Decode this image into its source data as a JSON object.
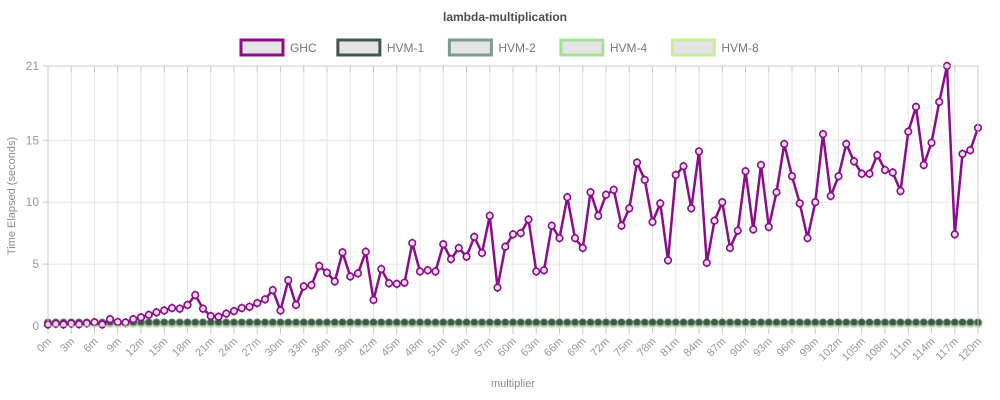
{
  "title": "lambda-multiplication",
  "axes": {
    "x_label": "multiplier",
    "y_label": "Time Elapsed (seconds)",
    "y_ticks": [
      0,
      5,
      10,
      15,
      21
    ],
    "x_tick_labels": [
      "0m",
      "3m",
      "6m",
      "9m",
      "12m",
      "15m",
      "18m",
      "21m",
      "24m",
      "27m",
      "30m",
      "33m",
      "36m",
      "39m",
      "42m",
      "45m",
      "48m",
      "51m",
      "54m",
      "57m",
      "60m",
      "63m",
      "66m",
      "69m",
      "72m",
      "75m",
      "78m",
      "81m",
      "84m",
      "87m",
      "90m",
      "93m",
      "96m",
      "99m",
      "102m",
      "105m",
      "108m",
      "111m",
      "114m",
      "117m",
      "120m"
    ]
  },
  "legend": [
    {
      "label": "GHC",
      "color": "#8b0d8b"
    },
    {
      "label": "HVM-1",
      "color": "#3d574a"
    },
    {
      "label": "HVM-2",
      "color": "#7d9d8a"
    },
    {
      "label": "HVM-4",
      "color": "#a3e295"
    },
    {
      "label": "HVM-8",
      "color": "#c6ef9c"
    }
  ],
  "colors": {
    "swatch_fill": "#e4e4e4",
    "grid": "#e6e6e6",
    "axis_border": "#cccccc",
    "tick_mark": "#c9c9c9",
    "tick_text": "#999999",
    "axis_title_text": "#8c8c8c",
    "title_text": "#4d4d4d",
    "legend_text": "#777777",
    "ghc_marker_fill": "#ecdcec"
  },
  "chart_data": {
    "type": "line",
    "title": "lambda-multiplication",
    "xlabel": "multiplier",
    "ylabel": "Time Elapsed (seconds)",
    "x_unit": "m",
    "x_step": 1,
    "x_max": 120,
    "ylim": [
      0,
      21
    ],
    "grid": true,
    "legend_position": "top-center",
    "series": [
      {
        "name": "GHC",
        "color": "#8b0d8b",
        "values": [
          0.12,
          0.18,
          0.12,
          0.2,
          0.14,
          0.22,
          0.3,
          0.12,
          0.55,
          0.32,
          0.28,
          0.55,
          0.7,
          0.9,
          1.1,
          1.25,
          1.45,
          1.4,
          1.7,
          2.5,
          1.4,
          0.8,
          0.75,
          1,
          1.2,
          1.45,
          1.55,
          1.85,
          2.15,
          2.9,
          1.25,
          3.7,
          1.7,
          3.2,
          3.3,
          4.85,
          4.3,
          3.6,
          5.95,
          4,
          4.25,
          6,
          2.1,
          4.6,
          3.45,
          3.4,
          3.5,
          6.7,
          4.4,
          4.5,
          4.4,
          6.6,
          5.4,
          6.3,
          5.6,
          7.2,
          5.9,
          8.9,
          3.1,
          6.4,
          7.4,
          7.5,
          8.6,
          4.4,
          4.5,
          8.1,
          7.1,
          10.4,
          7.1,
          6.3,
          10.8,
          8.9,
          10.6,
          11,
          8.1,
          9.5,
          13.2,
          11.8,
          8.4,
          9.9,
          5.3,
          12.2,
          12.9,
          9.5,
          14.1,
          5.1,
          8.5,
          10,
          6.3,
          7.7,
          12.5,
          7.8,
          13,
          8,
          10.8,
          14.7,
          12.1,
          9.9,
          7.1,
          10,
          15.5,
          10.5,
          12.1,
          14.7,
          13.3,
          12.3,
          12.3,
          13.8,
          12.6,
          12.4,
          10.9,
          15.7,
          17.7,
          13,
          14.8,
          18.1,
          21,
          7.4,
          13.9,
          14.2,
          16
        ]
      },
      {
        "name": "HVM-1",
        "color": "#3d574a",
        "values_constant": 0.3
      },
      {
        "name": "HVM-2",
        "color": "#7d9d8a",
        "values_constant": 0.28
      },
      {
        "name": "HVM-4",
        "color": "#a3e295",
        "values_constant": 0.25
      },
      {
        "name": "HVM-8",
        "color": "#c6ef9c",
        "values_constant": 0.22
      }
    ]
  }
}
